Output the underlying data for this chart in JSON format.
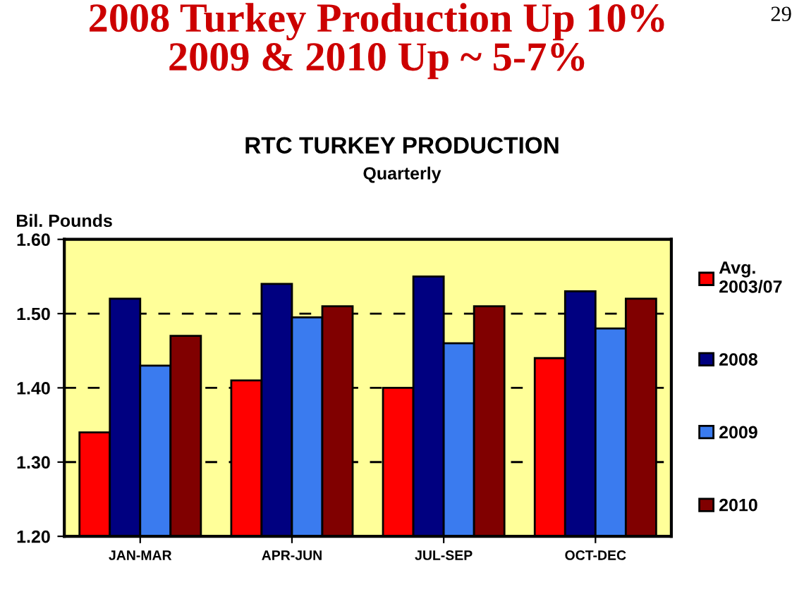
{
  "chart_data": {
    "type": "bar",
    "title": "2008 Turkey Production Up 10%\n2009 & 2010 Up ~ 5-7%",
    "subtitle": "RTC TURKEY PRODUCTION\nQuarterly",
    "ylabel": "Bil. Pounds",
    "annotations": [
      "29"
    ],
    "categories": [
      "JAN-MAR",
      "APR-JUN",
      "JUL-SEP",
      "OCT-DEC"
    ],
    "series": [
      {
        "name": "Avg.\n2003/07",
        "color": "#ff0000",
        "values": [
          1.34,
          1.41,
          1.4,
          1.44
        ]
      },
      {
        "name": "2008",
        "color": "#000080",
        "values": [
          1.52,
          1.54,
          1.55,
          1.53
        ]
      },
      {
        "name": "2009",
        "color": "#3a7bef",
        "values": [
          1.43,
          1.495,
          1.46,
          1.48
        ]
      },
      {
        "name": "2010",
        "color": "#800000",
        "values": [
          1.47,
          1.51,
          1.51,
          1.52
        ]
      }
    ],
    "ylim": [
      1.2,
      1.6
    ],
    "yticks": [
      {
        "value": 1.2,
        "label": "1.20"
      },
      {
        "value": 1.3,
        "label": "1.30"
      },
      {
        "value": 1.4,
        "label": "1.40"
      },
      {
        "value": 1.5,
        "label": "1.50"
      },
      {
        "value": 1.6,
        "label": "1.60"
      }
    ],
    "grid": "y",
    "legend": "right"
  }
}
